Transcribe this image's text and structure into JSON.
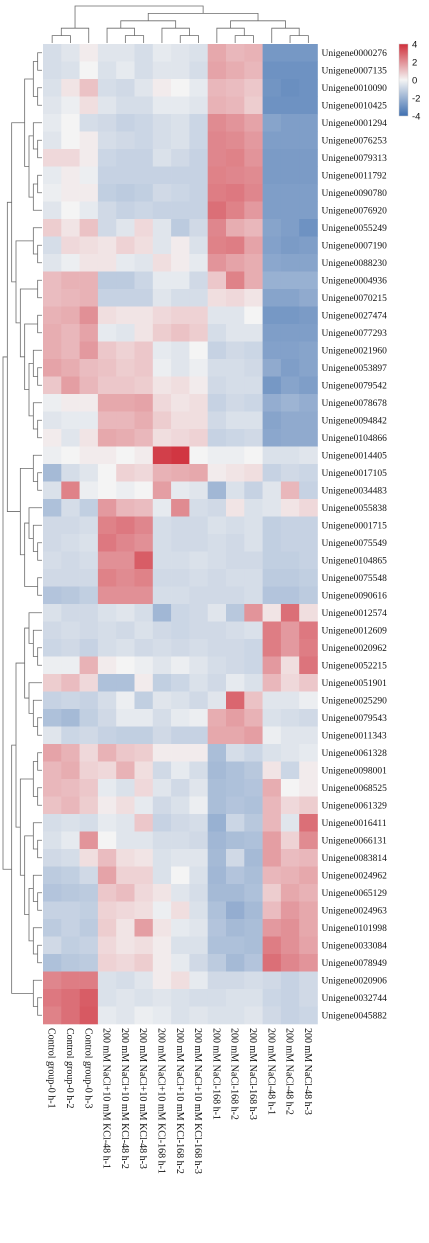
{
  "chart_data": {
    "type": "heatmap",
    "title": "",
    "color_scale": {
      "min": -4,
      "max": 4,
      "low_color": "#3f6fb0",
      "mid_color": "#f4f4f4",
      "high_color": "#cf2e3a"
    },
    "legend": {
      "placement": "top-right",
      "ticks": [
        "4",
        "2",
        "0",
        "-2",
        "-4"
      ]
    },
    "columns": [
      "Control group-0 h-1",
      "Control group-0 h-2",
      "Control group-0 h-3",
      "200 mM NaCl+10 mM KCl-48 h-1",
      "200 mM NaCl+10 mM KCl-48 h-2",
      "200 mM NaCl+10 mM KCl-48 h-3",
      "200 mM NaCl+10 mM KCl-168 h-1",
      "200 mM NaCl+10 mM KCl-168 h-2",
      "200 mM NaCl+10 mM KCl-168 h-3",
      "200 mM NaCl-168 h-1",
      "200 mM NaCl-168 h-2",
      "200 mM NaCl-168 h-3",
      "200 mM NaCl-48 h-1",
      "200 mM NaCl-48 h-2",
      "200 mM NaCl-48 h-3"
    ],
    "rows": [
      "Unigene0000276",
      "Unigene0007135",
      "Unigene0010090",
      "Unigene0010425",
      "Unigene0001294",
      "Unigene0076253",
      "Unigene0079313",
      "Unigene0011792",
      "Unigene0090780",
      "Unigene0076920",
      "Unigene0055249",
      "Unigene0007190",
      "Unigene0088230",
      "Unigene0004936",
      "Unigene0070215",
      "Unigene0027474",
      "Unigene0077293",
      "Unigene0021960",
      "Unigene0053897",
      "Unigene0079542",
      "Unigene0078678",
      "Unigene0094842",
      "Unigene0104866",
      "Unigene0014405",
      "Unigene0017105",
      "Unigene0034483",
      "Unigene0055838",
      "Unigene0001715",
      "Unigene0075549",
      "Unigene0104865",
      "Unigene0075548",
      "Unigene0090616",
      "Unigene0012574",
      "Unigene0012609",
      "Unigene0020962",
      "Unigene0052215",
      "Unigene0051901",
      "Unigene0025290",
      "Unigene0079543",
      "Unigene0011343",
      "Unigene0061328",
      "Unigene0098001",
      "Unigene0068525",
      "Unigene0061329",
      "Unigene0016411",
      "Unigene0066131",
      "Unigene0083814",
      "Unigene0024962",
      "Unigene0065129",
      "Unigene0024963",
      "Unigene0101998",
      "Unigene0033084",
      "Unigene0078949",
      "Unigene0020906",
      "Unigene0032744",
      "Unigene0045882"
    ],
    "values": [
      [
        -0.5,
        -0.3,
        0.1,
        -0.3,
        -0.3,
        -0.5,
        -0.2,
        -0.3,
        -0.4,
        1.3,
        1.0,
        1.1,
        -2.6,
        -2.6,
        -2.6
      ],
      [
        -0.5,
        -0.4,
        0.0,
        -0.4,
        -0.2,
        -0.5,
        -0.3,
        -0.3,
        -0.5,
        1.4,
        1.2,
        1.0,
        -2.8,
        -2.8,
        -2.8
      ],
      [
        -0.4,
        0.2,
        0.8,
        -0.5,
        -0.6,
        -0.3,
        0.1,
        0.0,
        -0.2,
        1.0,
        0.9,
        0.7,
        -2.7,
        -2.9,
        -2.8
      ],
      [
        -0.3,
        -0.1,
        0.3,
        -0.3,
        -0.5,
        -0.5,
        -0.2,
        -0.2,
        -0.3,
        1.1,
        1.0,
        0.6,
        -2.8,
        -2.8,
        -2.8
      ],
      [
        -0.2,
        0.0,
        -0.5,
        -0.6,
        -0.8,
        -0.7,
        -0.5,
        -0.4,
        -0.7,
        1.9,
        1.7,
        1.4,
        -2.2,
        -2.4,
        -2.4
      ],
      [
        -0.3,
        0.0,
        0.1,
        -0.5,
        -0.6,
        -0.7,
        -0.5,
        -0.4,
        -0.7,
        2.0,
        1.9,
        1.6,
        -2.4,
        -2.4,
        -2.4
      ],
      [
        0.4,
        0.4,
        0.1,
        -0.7,
        -0.8,
        -0.8,
        -0.4,
        -0.6,
        -0.8,
        2.0,
        2.1,
        1.7,
        -2.5,
        -2.5,
        -2.5
      ],
      [
        -0.2,
        0.1,
        -0.1,
        -0.8,
        -0.8,
        -0.8,
        -0.8,
        -0.8,
        -0.8,
        2.1,
        2.0,
        1.9,
        -2.5,
        -2.5,
        -2.5
      ],
      [
        -0.1,
        0.1,
        0.1,
        -0.9,
        -1.0,
        -0.9,
        -0.6,
        -0.7,
        -0.8,
        2.2,
        2.3,
        2.0,
        -2.4,
        -2.4,
        -2.4
      ],
      [
        -0.3,
        0.0,
        -0.2,
        -0.6,
        -0.8,
        -0.7,
        -0.8,
        -0.8,
        -0.8,
        2.5,
        2.1,
        1.6,
        -2.4,
        -2.4,
        -2.4
      ],
      [
        0.6,
        0.2,
        0.8,
        -0.6,
        -0.3,
        0.4,
        -0.3,
        -1.0,
        -0.6,
        2.0,
        1.2,
        1.0,
        -2.2,
        -2.4,
        -2.8
      ],
      [
        -0.5,
        0.4,
        0.3,
        0.2,
        0.5,
        0.3,
        -0.3,
        0.1,
        -0.4,
        2.1,
        2.2,
        1.4,
        -2.3,
        -2.5,
        -2.4
      ],
      [
        -0.3,
        -0.1,
        0.2,
        0.2,
        -0.2,
        -0.3,
        0.3,
        0.1,
        -0.2,
        1.7,
        1.4,
        1.2,
        -2.1,
        -2.2,
        -2.2
      ],
      [
        0.9,
        1.1,
        1.1,
        -1.0,
        -1.0,
        -0.7,
        -0.2,
        -0.2,
        -0.6,
        0.7,
        2.1,
        1.2,
        -1.8,
        -1.8,
        -1.8
      ],
      [
        0.9,
        1.0,
        1.1,
        -0.8,
        -0.8,
        -0.8,
        -0.3,
        -0.5,
        -0.5,
        0.3,
        0.4,
        0.2,
        -2.2,
        -2.2,
        -2.0
      ],
      [
        1.1,
        1.2,
        1.8,
        0.3,
        0.2,
        0.2,
        0.4,
        0.5,
        0.5,
        -0.3,
        -0.3,
        0.0,
        -2.6,
        -2.6,
        -2.5
      ],
      [
        1.2,
        1.0,
        1.4,
        -0.2,
        -0.3,
        0.2,
        0.6,
        0.8,
        0.6,
        -0.5,
        -0.3,
        -0.3,
        -2.4,
        -2.4,
        -2.4
      ],
      [
        1.2,
        1.0,
        1.6,
        0.7,
        0.5,
        0.7,
        -0.2,
        -0.3,
        0.0,
        -0.8,
        -0.6,
        -0.7,
        -2.3,
        -2.3,
        -2.2
      ],
      [
        1.4,
        1.2,
        0.9,
        0.8,
        0.6,
        0.7,
        -0.1,
        -0.3,
        -0.1,
        -0.5,
        -0.5,
        -0.6,
        -2.0,
        -2.4,
        -2.2
      ],
      [
        0.7,
        1.5,
        1.0,
        0.7,
        0.7,
        0.6,
        0.2,
        0.3,
        0.1,
        -0.6,
        -0.5,
        -0.5,
        -2.6,
        -2.2,
        -2.4
      ],
      [
        -0.1,
        0.1,
        0.1,
        1.3,
        1.3,
        1.4,
        0.4,
        0.2,
        0.3,
        -0.8,
        -0.6,
        -0.7,
        -1.9,
        -1.7,
        -1.9
      ],
      [
        -0.3,
        -0.2,
        -0.2,
        1.0,
        1.0,
        1.2,
        0.6,
        0.3,
        0.3,
        -0.6,
        -0.4,
        -0.4,
        -2.2,
        -2.0,
        -2.0
      ],
      [
        0.1,
        -0.3,
        0.2,
        1.3,
        1.2,
        1.0,
        0.3,
        0.4,
        0.5,
        -0.8,
        -0.7,
        -0.6,
        -2.1,
        -2.0,
        -2.0
      ],
      [
        -0.1,
        0.0,
        0.1,
        0.1,
        0.0,
        0.1,
        3.6,
        3.8,
        0.0,
        -0.1,
        -0.1,
        0.0,
        -0.4,
        -0.4,
        -0.3
      ],
      [
        -1.5,
        -0.5,
        -0.3,
        0.0,
        0.5,
        0.4,
        1.1,
        1.2,
        1.3,
        0.1,
        0.2,
        0.3,
        -0.8,
        -0.6,
        -0.7
      ],
      [
        -0.4,
        2.1,
        -0.1,
        0.0,
        -0.1,
        0.0,
        1.5,
        -0.2,
        -0.3,
        -1.6,
        -0.4,
        -0.8,
        -0.3,
        1.0,
        -0.8
      ],
      [
        -1.3,
        -0.5,
        -0.9,
        1.6,
        1.0,
        0.9,
        -0.2,
        1.9,
        -0.5,
        -0.6,
        0.2,
        -0.4,
        -0.3,
        0.2,
        0.4
      ],
      [
        -0.6,
        -0.6,
        -0.5,
        2.1,
        2.3,
        2.0,
        -0.5,
        -0.6,
        -0.6,
        -0.4,
        -0.5,
        -0.4,
        -0.9,
        -0.8,
        -0.8
      ],
      [
        -0.6,
        -0.5,
        -0.4,
        2.3,
        2.0,
        1.8,
        -0.5,
        -0.6,
        -0.6,
        -0.5,
        -0.6,
        -0.4,
        -0.9,
        -0.8,
        -0.8
      ],
      [
        -0.5,
        -0.6,
        -0.5,
        1.8,
        1.8,
        2.9,
        -0.5,
        -0.5,
        -0.4,
        -0.5,
        -0.6,
        -0.6,
        -0.9,
        -0.9,
        -0.8
      ],
      [
        -0.6,
        -0.6,
        -0.6,
        2.1,
        1.9,
        2.1,
        -0.6,
        -0.6,
        -0.5,
        -0.6,
        -0.5,
        -0.5,
        -1.0,
        -1.0,
        -0.9
      ],
      [
        -1.2,
        -1.1,
        -0.9,
        1.8,
        1.8,
        1.8,
        -0.5,
        -0.5,
        -0.6,
        -0.6,
        -0.6,
        -0.5,
        -1.2,
        -1.2,
        -1.0
      ],
      [
        -0.4,
        -0.6,
        -0.6,
        -0.4,
        -0.3,
        -0.5,
        -1.6,
        -0.7,
        -0.6,
        -0.3,
        -1.1,
        1.7,
        0.2,
        2.5,
        0.3
      ],
      [
        -0.6,
        -0.5,
        -0.6,
        -0.5,
        -0.6,
        -0.4,
        -0.6,
        -0.7,
        -0.6,
        -0.6,
        -0.5,
        -0.4,
        2.2,
        1.6,
        2.3
      ],
      [
        -0.7,
        -0.6,
        -0.8,
        -0.5,
        -0.4,
        -0.6,
        -0.5,
        -0.6,
        -0.5,
        -0.6,
        -0.6,
        -0.7,
        2.2,
        1.6,
        2.2
      ],
      [
        -0.1,
        -0.1,
        1.1,
        0.1,
        0.0,
        -0.1,
        -0.3,
        -0.1,
        -0.3,
        -0.5,
        -0.6,
        -0.7,
        1.6,
        0.3,
        2.4
      ],
      [
        0.6,
        0.9,
        0.4,
        -1.3,
        -1.3,
        0.1,
        -0.9,
        -0.7,
        -0.4,
        -0.6,
        -0.2,
        -0.4,
        1.0,
        0.4,
        0.7
      ],
      [
        -0.8,
        -0.7,
        -0.8,
        -0.5,
        -0.1,
        -0.9,
        -0.3,
        -0.4,
        -0.6,
        -0.3,
        2.7,
        0.8,
        -0.3,
        -0.3,
        -0.1
      ],
      [
        -1.3,
        -1.5,
        -0.9,
        -0.6,
        -0.2,
        -0.2,
        -0.5,
        -0.2,
        -0.1,
        1.2,
        1.5,
        1.1,
        -0.4,
        -0.5,
        -0.6
      ],
      [
        -0.3,
        -0.7,
        -0.6,
        -0.8,
        -0.9,
        -0.9,
        -0.6,
        -0.8,
        -0.8,
        1.3,
        1.3,
        1.5,
        -0.1,
        -0.3,
        -0.3
      ],
      [
        1.4,
        1.1,
        0.4,
        1.1,
        0.7,
        0.6,
        0.1,
        0.1,
        0.1,
        -1.4,
        -0.5,
        -0.7,
        -0.4,
        -0.3,
        -0.2
      ],
      [
        1.0,
        1.2,
        0.5,
        0.4,
        1.1,
        0.3,
        -0.6,
        -0.2,
        -0.5,
        -1.5,
        -1.3,
        -1.1,
        0.2,
        -0.7,
        0.1
      ],
      [
        1.0,
        0.9,
        0.7,
        -0.2,
        -0.4,
        0.4,
        -0.3,
        -0.6,
        -0.3,
        -1.4,
        -1.3,
        -1.2,
        1.2,
        0.0,
        0.1
      ],
      [
        0.8,
        1.0,
        0.6,
        0.1,
        0.3,
        -0.2,
        -0.6,
        -0.4,
        -0.1,
        -1.4,
        -1.2,
        -1.3,
        1.0,
        0.4,
        0.6
      ],
      [
        -0.5,
        -0.4,
        -0.5,
        -0.2,
        -0.3,
        0.7,
        -0.8,
        -0.6,
        -0.5,
        -1.8,
        -0.7,
        -1.1,
        1.0,
        -0.3,
        2.5
      ],
      [
        -0.4,
        -0.2,
        1.7,
        0.0,
        -0.3,
        -0.3,
        -0.5,
        -0.5,
        -0.6,
        -1.6,
        -1.4,
        -1.3,
        1.5,
        0.5,
        1.9
      ],
      [
        -0.6,
        -0.5,
        0.3,
        0.9,
        0.3,
        0.2,
        -0.4,
        -0.3,
        -0.3,
        -1.5,
        -0.6,
        -1.5,
        1.5,
        0.9,
        1.0
      ],
      [
        -1.0,
        -0.9,
        -0.6,
        1.4,
        0.5,
        0.5,
        -0.4,
        0.0,
        -0.4,
        -1.6,
        -1.2,
        -1.4,
        1.0,
        1.1,
        1.3
      ],
      [
        -1.2,
        -1.1,
        -1.0,
        0.7,
        0.9,
        0.4,
        0.2,
        -0.3,
        -0.5,
        -1.5,
        -1.5,
        -1.3,
        0.6,
        1.3,
        1.1
      ],
      [
        -0.8,
        -0.8,
        -0.9,
        0.5,
        0.4,
        0.3,
        -0.1,
        0.3,
        -0.4,
        -1.3,
        -1.9,
        -1.5,
        0.9,
        1.6,
        1.3
      ],
      [
        -1.0,
        -0.8,
        -1.0,
        0.6,
        0.2,
        1.5,
        0.2,
        -0.2,
        -0.3,
        -1.2,
        -1.5,
        -1.4,
        1.6,
        1.8,
        1.3
      ],
      [
        -0.6,
        -0.9,
        -0.8,
        0.4,
        0.2,
        0.3,
        0.1,
        -0.4,
        -0.4,
        -1.3,
        -1.3,
        -1.4,
        2.2,
        1.8,
        1.4
      ],
      [
        -1.3,
        -1.1,
        -1.0,
        0.5,
        0.4,
        0.6,
        0.1,
        -0.2,
        -0.6,
        -1.0,
        -1.5,
        -1.2,
        2.5,
        2.0,
        1.7
      ],
      [
        2.0,
        2.2,
        2.2,
        -0.4,
        -0.5,
        -0.3,
        0.1,
        0.3,
        -0.2,
        -0.6,
        -0.6,
        -0.5,
        -0.6,
        -0.8,
        -0.6
      ],
      [
        2.3,
        2.5,
        2.9,
        -0.4,
        -0.3,
        -0.4,
        -0.3,
        -0.4,
        -0.5,
        -0.5,
        -0.4,
        -0.4,
        -0.7,
        -0.8,
        -0.6
      ],
      [
        2.1,
        2.5,
        3.0,
        -0.2,
        -0.3,
        -0.1,
        -0.2,
        -0.4,
        -0.3,
        -0.4,
        -0.4,
        -0.3,
        -0.6,
        -0.8,
        -0.7
      ]
    ]
  }
}
